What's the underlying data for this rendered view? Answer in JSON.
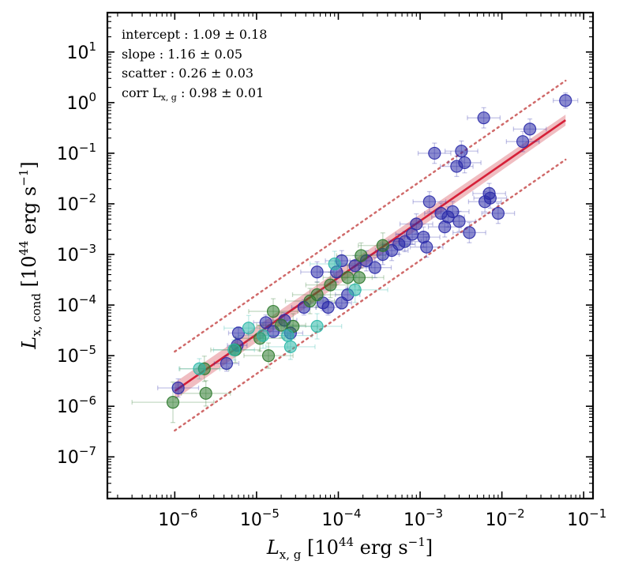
{
  "chart_data": {
    "type": "scatter",
    "x_scale": "log",
    "y_scale": "log",
    "xlim": [
      1.5e-07,
      0.13
    ],
    "ylim": [
      1.5e-08,
      60
    ],
    "xlabel": {
      "main": "L",
      "sub": "x, g",
      "unit": "[10",
      "exp": "44",
      "unit_tail": " erg s",
      "unit_exp": "−1",
      "close": "]"
    },
    "ylabel": {
      "main": "L",
      "sub": "x, cond",
      "unit": "[10",
      "exp": "44",
      "unit_tail": " erg s",
      "unit_exp": "−1",
      "close": "]"
    },
    "x_ticks": [
      {
        "value": 1e-06,
        "base": "10",
        "exp": "−6"
      },
      {
        "value": 1e-05,
        "base": "10",
        "exp": "−5"
      },
      {
        "value": 0.0001,
        "base": "10",
        "exp": "−4"
      },
      {
        "value": 0.001,
        "base": "10",
        "exp": "−3"
      },
      {
        "value": 0.01,
        "base": "10",
        "exp": "−2"
      },
      {
        "value": 0.1,
        "base": "10",
        "exp": "−1"
      }
    ],
    "y_ticks": [
      {
        "value": 1e-07,
        "base": "10",
        "exp": "−7"
      },
      {
        "value": 1e-06,
        "base": "10",
        "exp": "−6"
      },
      {
        "value": 1e-05,
        "base": "10",
        "exp": "−5"
      },
      {
        "value": 0.0001,
        "base": "10",
        "exp": "−4"
      },
      {
        "value": 0.001,
        "base": "10",
        "exp": "−3"
      },
      {
        "value": 0.01,
        "base": "10",
        "exp": "−2"
      },
      {
        "value": 0.1,
        "base": "10",
        "exp": "−1"
      },
      {
        "value": 1,
        "base": "10",
        "exp": "0"
      },
      {
        "value": 10,
        "base": "10",
        "exp": "1"
      }
    ],
    "annotations": [
      {
        "label": "intercept",
        "value": "1.09 ± 0.18"
      },
      {
        "label": "slope",
        "value": "1.16 ± 0.05"
      },
      {
        "label": "scatter",
        "value": "0.26 ± 0.03"
      },
      {
        "label": "corr L",
        "label_sub": "x, g",
        "value": "0.98 ± 0.01"
      }
    ],
    "fit": {
      "x_range": [
        1e-06,
        0.06
      ],
      "y_range": [
        2e-06,
        0.45
      ],
      "band_dex": 0.12,
      "scatter_dex": 0.78,
      "line_color": "#d62038",
      "band_color": "#e89aa0",
      "scatter_color": "#d06a6a"
    },
    "series": [
      {
        "color": "#2a2aa8",
        "points": [
          {
            "x": 1.1e-06,
            "y": 2.3e-06,
            "xerr": 0.25,
            "yerr": 0.18
          },
          {
            "x": 4.3e-06,
            "y": 7e-06,
            "xerr": 0.15,
            "yerr": 0.15
          },
          {
            "x": 5.8e-06,
            "y": 1.6e-05,
            "xerr": 0.12,
            "yerr": 0.12
          },
          {
            "x": 6e-06,
            "y": 2.8e-05,
            "xerr": 0.12,
            "yerr": 0.12
          },
          {
            "x": 1.3e-05,
            "y": 4.5e-05,
            "xerr": 0.15,
            "yerr": 0.15
          },
          {
            "x": 1.6e-05,
            "y": 3e-05,
            "xerr": 0.12,
            "yerr": 0.12
          },
          {
            "x": 2.2e-05,
            "y": 5e-05,
            "xerr": 0.15,
            "yerr": 0.15
          },
          {
            "x": 2.6e-05,
            "y": 2.8e-05,
            "xerr": 0.15,
            "yerr": 0.12
          },
          {
            "x": 3.8e-05,
            "y": 9e-05,
            "xerr": 0.15,
            "yerr": 0.15
          },
          {
            "x": 5.5e-05,
            "y": 0.00045,
            "xerr": 0.2,
            "yerr": 0.2
          },
          {
            "x": 6.5e-05,
            "y": 0.00011,
            "xerr": 0.15,
            "yerr": 0.15
          },
          {
            "x": 7.5e-05,
            "y": 9e-05,
            "xerr": 0.15,
            "yerr": 0.15
          },
          {
            "x": 9.5e-05,
            "y": 0.00045,
            "xerr": 0.2,
            "yerr": 0.2
          },
          {
            "x": 0.00011,
            "y": 0.00075,
            "xerr": 0.2,
            "yerr": 0.2
          },
          {
            "x": 0.00011,
            "y": 0.00011,
            "xerr": 0.12,
            "yerr": 0.12
          },
          {
            "x": 0.00013,
            "y": 0.00016,
            "xerr": 0.15,
            "yerr": 0.15
          },
          {
            "x": 0.00016,
            "y": 0.0006,
            "xerr": 0.2,
            "yerr": 0.2
          },
          {
            "x": 0.00022,
            "y": 0.00075,
            "xerr": 0.2,
            "yerr": 0.2
          },
          {
            "x": 0.00028,
            "y": 0.00055,
            "xerr": 0.2,
            "yerr": 0.2
          },
          {
            "x": 0.00035,
            "y": 0.001,
            "xerr": 0.2,
            "yerr": 0.2
          },
          {
            "x": 0.00045,
            "y": 0.0012,
            "xerr": 0.2,
            "yerr": 0.2
          },
          {
            "x": 0.00055,
            "y": 0.0016,
            "xerr": 0.2,
            "yerr": 0.2
          },
          {
            "x": 0.00065,
            "y": 0.0018,
            "xerr": 0.2,
            "yerr": 0.2
          },
          {
            "x": 0.0008,
            "y": 0.0025,
            "xerr": 0.2,
            "yerr": 0.2
          },
          {
            "x": 0.0009,
            "y": 0.004,
            "xerr": 0.2,
            "yerr": 0.2
          },
          {
            "x": 0.0011,
            "y": 0.0022,
            "xerr": 0.2,
            "yerr": 0.2
          },
          {
            "x": 0.0012,
            "y": 0.0014,
            "xerr": 0.2,
            "yerr": 0.2
          },
          {
            "x": 0.0013,
            "y": 0.011,
            "xerr": 0.2,
            "yerr": 0.2
          },
          {
            "x": 0.0015,
            "y": 0.1,
            "xerr": 0.2,
            "yerr": 0.2
          },
          {
            "x": 0.0018,
            "y": 0.0065,
            "xerr": 0.2,
            "yerr": 0.2
          },
          {
            "x": 0.002,
            "y": 0.0035,
            "xerr": 0.2,
            "yerr": 0.2
          },
          {
            "x": 0.0022,
            "y": 0.0055,
            "xerr": 0.2,
            "yerr": 0.2
          },
          {
            "x": 0.0025,
            "y": 0.007,
            "xerr": 0.2,
            "yerr": 0.2
          },
          {
            "x": 0.0028,
            "y": 0.055,
            "xerr": 0.2,
            "yerr": 0.2
          },
          {
            "x": 0.003,
            "y": 0.0045,
            "xerr": 0.2,
            "yerr": 0.2
          },
          {
            "x": 0.0032,
            "y": 0.11,
            "xerr": 0.2,
            "yerr": 0.2
          },
          {
            "x": 0.0035,
            "y": 0.065,
            "xerr": 0.2,
            "yerr": 0.2
          },
          {
            "x": 0.004,
            "y": 0.0027,
            "xerr": 0.2,
            "yerr": 0.2
          },
          {
            "x": 0.006,
            "y": 0.5,
            "xerr": 0.2,
            "yerr": 0.2
          },
          {
            "x": 0.0062,
            "y": 0.011,
            "xerr": 0.2,
            "yerr": 0.2
          },
          {
            "x": 0.007,
            "y": 0.016,
            "xerr": 0.2,
            "yerr": 0.2
          },
          {
            "x": 0.0072,
            "y": 0.013,
            "xerr": 0.2,
            "yerr": 0.2
          },
          {
            "x": 0.009,
            "y": 0.0065,
            "xerr": 0.2,
            "yerr": 0.2
          },
          {
            "x": 0.018,
            "y": 0.17,
            "xerr": 0.2,
            "yerr": 0.2
          },
          {
            "x": 0.022,
            "y": 0.3,
            "xerr": 0.2,
            "yerr": 0.2
          },
          {
            "x": 0.06,
            "y": 1.1,
            "xerr": 0.15,
            "yerr": 0.15
          }
        ]
      },
      {
        "color": "#2e7a2e",
        "points": [
          {
            "x": 9.5e-07,
            "y": 1.2e-06,
            "xerr": 0.5,
            "yerr": 0.4
          },
          {
            "x": 2.3e-06,
            "y": 5.5e-06,
            "xerr": 0.3,
            "yerr": 0.25
          },
          {
            "x": 2.4e-06,
            "y": 1.8e-06,
            "xerr": 0.3,
            "yerr": 0.25
          },
          {
            "x": 5.5e-06,
            "y": 1.3e-05,
            "xerr": 0.3,
            "yerr": 0.25
          },
          {
            "x": 1.1e-05,
            "y": 2.2e-05,
            "xerr": 0.3,
            "yerr": 0.25
          },
          {
            "x": 1.4e-05,
            "y": 1e-05,
            "xerr": 0.3,
            "yerr": 0.25
          },
          {
            "x": 1.6e-05,
            "y": 7.5e-05,
            "xerr": 0.3,
            "yerr": 0.25
          },
          {
            "x": 2e-05,
            "y": 4e-05,
            "xerr": 0.3,
            "yerr": 0.25
          },
          {
            "x": 2.8e-05,
            "y": 3.8e-05,
            "xerr": 0.3,
            "yerr": 0.25
          },
          {
            "x": 4.5e-05,
            "y": 0.00012,
            "xerr": 0.3,
            "yerr": 0.25
          },
          {
            "x": 5.5e-05,
            "y": 0.00016,
            "xerr": 0.3,
            "yerr": 0.25
          },
          {
            "x": 8e-05,
            "y": 0.00025,
            "xerr": 0.3,
            "yerr": 0.25
          },
          {
            "x": 0.00013,
            "y": 0.00035,
            "xerr": 0.3,
            "yerr": 0.25
          },
          {
            "x": 0.00018,
            "y": 0.00035,
            "xerr": 0.3,
            "yerr": 0.25
          },
          {
            "x": 0.00019,
            "y": 0.00095,
            "xerr": 0.3,
            "yerr": 0.25
          },
          {
            "x": 0.00035,
            "y": 0.0015,
            "xerr": 0.3,
            "yerr": 0.25
          }
        ]
      },
      {
        "color": "#2cb8a8",
        "points": [
          {
            "x": 2e-06,
            "y": 5.5e-06,
            "xerr": 0.25,
            "yerr": 0.2
          },
          {
            "x": 5.3e-06,
            "y": 1.3e-05,
            "xerr": 0.25,
            "yerr": 0.2
          },
          {
            "x": 8e-06,
            "y": 3.5e-05,
            "xerr": 0.3,
            "yerr": 0.25
          },
          {
            "x": 1.2e-05,
            "y": 2.5e-05,
            "xerr": 0.3,
            "yerr": 0.25
          },
          {
            "x": 2.4e-05,
            "y": 2.5e-05,
            "xerr": 0.3,
            "yerr": 0.25
          },
          {
            "x": 2.6e-05,
            "y": 1.5e-05,
            "xerr": 0.3,
            "yerr": 0.25
          },
          {
            "x": 5.5e-05,
            "y": 3.8e-05,
            "xerr": 0.3,
            "yerr": 0.25
          },
          {
            "x": 9e-05,
            "y": 0.00065,
            "xerr": 0.3,
            "yerr": 0.25
          },
          {
            "x": 0.00016,
            "y": 0.0002,
            "xerr": 0.4,
            "yerr": 0.25
          }
        ]
      }
    ]
  }
}
